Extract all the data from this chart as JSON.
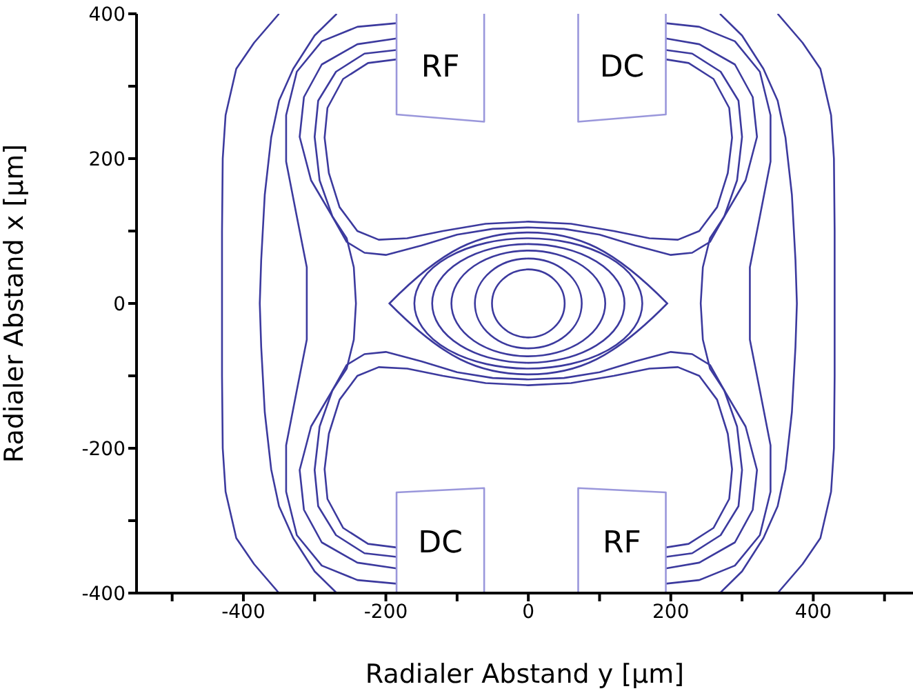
{
  "chart_data": {
    "type": "line",
    "xlabel": "Radialer Abstand y [µm]",
    "ylabel": "Radialer Abstand x [µm]",
    "xlim": [
      -550,
      540
    ],
    "ylim": [
      -400,
      400
    ],
    "xticks": [
      {
        "value": -500,
        "label": null
      },
      -400,
      {
        "value": -300,
        "label": null
      },
      -200,
      {
        "value": -100,
        "label": null
      },
      0,
      {
        "value": 100,
        "label": null
      },
      200,
      {
        "value": 300,
        "label": null
      },
      400,
      {
        "value": 500,
        "label": null
      }
    ],
    "yticks": [
      -400,
      {
        "value": -300,
        "label": null
      },
      -200,
      {
        "value": -100,
        "label": null
      },
      0,
      {
        "value": 100,
        "label": null
      },
      200,
      {
        "value": 300,
        "label": null
      },
      400
    ],
    "grid": false,
    "marker": "none",
    "line_style": "solid",
    "annotations": [
      "RF",
      "DC",
      "DC",
      "RF"
    ],
    "series": [
      {
        "color": "#3c3a9e",
        "x": [
          -185,
          -225,
          -260,
          -282,
          -286,
          -280,
          -265,
          -240,
          -210,
          -170,
          -120,
          -60,
          0,
          60,
          120,
          170,
          210,
          240,
          265,
          280,
          286,
          282,
          260,
          225,
          193
        ],
        "values": [
          337,
          332,
          310,
          270,
          229,
          180,
          133,
          100,
          88,
          90,
          100,
          110,
          113,
          110,
          100,
          90,
          88,
          100,
          133,
          180,
          229,
          270,
          310,
          332,
          337
        ]
      },
      {
        "color": "#3c3a9e",
        "x": [
          -185,
          -225,
          -260,
          -282,
          -286,
          -280,
          -265,
          -240,
          -210,
          -170,
          -120,
          -60,
          0,
          60,
          120,
          170,
          210,
          240,
          265,
          280,
          286,
          282,
          260,
          225,
          193
        ],
        "values": [
          -337,
          -332,
          -310,
          -270,
          -229,
          -180,
          -133,
          -100,
          -88,
          -90,
          -100,
          -110,
          -113,
          -110,
          -100,
          -90,
          -88,
          -100,
          -133,
          -180,
          -229,
          -270,
          -310,
          -332,
          -337
        ]
      },
      {
        "color": "#3c3a9e",
        "x": [
          -185,
          -230,
          -270,
          -295,
          -300,
          -293,
          -275,
          -255,
          -230,
          -200,
          -150,
          -100,
          -50,
          0,
          50,
          100,
          150,
          200,
          230,
          255,
          275,
          293,
          300,
          295,
          270,
          230,
          193
        ],
        "values": [
          350,
          345,
          320,
          280,
          230,
          170,
          120,
          85,
          70,
          67,
          80,
          95,
          103,
          105,
          103,
          95,
          80,
          67,
          70,
          85,
          120,
          170,
          230,
          280,
          320,
          345,
          350
        ]
      },
      {
        "color": "#3c3a9e",
        "x": [
          -185,
          -230,
          -270,
          -295,
          -300,
          -293,
          -275,
          -255,
          -230,
          -200,
          -150,
          -100,
          -50,
          0,
          50,
          100,
          150,
          200,
          230,
          255,
          275,
          293,
          300,
          295,
          270,
          230,
          193
        ],
        "values": [
          -350,
          -345,
          -320,
          -280,
          -230,
          -170,
          -120,
          -85,
          -70,
          -67,
          -80,
          -95,
          -103,
          -105,
          -103,
          -95,
          -80,
          -67,
          -70,
          -85,
          -120,
          -170,
          -230,
          -280,
          -320,
          -345,
          -350
        ]
      },
      {
        "color": "#3c3a9e",
        "x": [
          -185,
          -240,
          -290,
          -315,
          -321,
          -305,
          -275,
          -255,
          -245,
          -242,
          -245,
          -255,
          -275,
          -305,
          -321,
          -315,
          -290,
          -240,
          -185
        ],
        "values": [
          366,
          358,
          330,
          285,
          230,
          170,
          120,
          90,
          50,
          0,
          -50,
          -90,
          -120,
          -170,
          -230,
          -285,
          -330,
          -358,
          -366
        ]
      },
      {
        "color": "#3c3a9e",
        "x": [
          193,
          240,
          290,
          315,
          321,
          305,
          275,
          255,
          245,
          242,
          245,
          255,
          275,
          305,
          321,
          315,
          290,
          240,
          193
        ],
        "values": [
          366,
          358,
          330,
          285,
          230,
          170,
          120,
          90,
          50,
          0,
          -50,
          -90,
          -120,
          -170,
          -230,
          -285,
          -330,
          -358,
          -366
        ]
      },
      {
        "color": "#3c3a9e",
        "x": [
          -185,
          -240,
          -290,
          -325,
          -340,
          -340,
          -325,
          -311,
          -311,
          -311,
          -325,
          -340,
          -340,
          -325,
          -290,
          -240,
          -185
        ],
        "values": [
          387,
          382,
          362,
          320,
          260,
          196,
          120,
          50,
          0,
          -50,
          -120,
          -196,
          -260,
          -320,
          -362,
          -382,
          -387
        ]
      },
      {
        "color": "#3c3a9e",
        "x": [
          193,
          240,
          290,
          325,
          340,
          340,
          325,
          311,
          311,
          311,
          325,
          340,
          340,
          325,
          290,
          240,
          193
        ],
        "values": [
          387,
          382,
          362,
          320,
          260,
          196,
          120,
          50,
          0,
          -50,
          -120,
          -196,
          -260,
          -320,
          -362,
          -382,
          -387
        ]
      },
      {
        "color": "#3c3a9e",
        "x": [
          -269,
          -300,
          -330,
          -350,
          -361,
          -370,
          -375,
          -377,
          -375,
          -370,
          -361,
          -350,
          -330,
          -300,
          -269
        ],
        "values": [
          400,
          370,
          324,
          280,
          229,
          150,
          60,
          0,
          -60,
          -150,
          -229,
          -280,
          -324,
          -370,
          -400
        ]
      },
      {
        "color": "#3c3a9e",
        "x": [
          269,
          300,
          330,
          350,
          361,
          370,
          375,
          377,
          375,
          370,
          361,
          350,
          330,
          300,
          269
        ],
        "values": [
          400,
          370,
          324,
          280,
          229,
          150,
          60,
          0,
          -60,
          -150,
          -229,
          -280,
          -324,
          -370,
          -400
        ]
      },
      {
        "color": "#3c3a9e",
        "x": [
          -350,
          -385,
          -410,
          -425,
          -429,
          -430,
          -430,
          -430,
          -429,
          -425,
          -410,
          -385,
          -350
        ],
        "values": [
          400,
          360,
          324,
          260,
          200,
          100,
          0,
          -100,
          -200,
          -260,
          -324,
          -360,
          -400
        ]
      },
      {
        "color": "#3c3a9e",
        "x": [
          350,
          385,
          410,
          425,
          429,
          430,
          430,
          430,
          429,
          425,
          410,
          385,
          350
        ],
        "values": [
          400,
          360,
          324,
          260,
          200,
          100,
          0,
          -100,
          -200,
          -260,
          -324,
          -360,
          -400
        ]
      },
      {
        "color": "#9a97db",
        "x": [
          -185,
          -185,
          -62,
          -62
        ],
        "values": [
          400,
          261,
          251,
          400
        ]
      },
      {
        "color": "#9a97db",
        "x": [
          70,
          70,
          193,
          193
        ],
        "values": [
          400,
          251,
          261,
          400
        ]
      },
      {
        "color": "#9a97db",
        "x": [
          -185,
          -185,
          -62,
          -62
        ],
        "values": [
          -400,
          -261,
          -255,
          -400
        ]
      },
      {
        "color": "#9a97db",
        "x": [
          70,
          70,
          193,
          193
        ],
        "values": [
          -400,
          -255,
          -261,
          -400
        ]
      }
    ]
  }
}
